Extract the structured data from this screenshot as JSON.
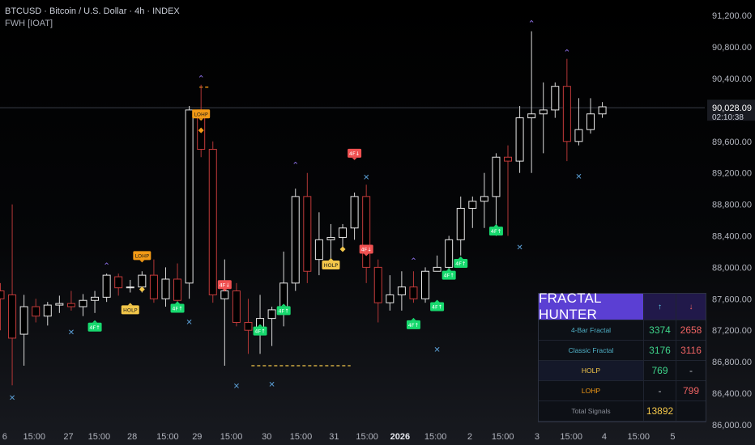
{
  "header": {
    "symbol_line": "BTCUSD · Bitcoin / U.S. Dollar · 4h · INDEX",
    "indicator_line": "FWH [IOAT]"
  },
  "colors": {
    "bull_body": "#000000",
    "bull_border": "#e8e8e8",
    "bear_body": "#000000",
    "bear_border": "#c43b3b",
    "bull_wick": "#d8d8d8",
    "bear_wick": "#b33737",
    "top_fractal": "#8c6fe6",
    "bottom_fractal": "#5b9fd6",
    "ff_green": "#17d96e",
    "ff_red": "#f05151",
    "holp": "#f3c74a",
    "lohp": "#f39a16",
    "price_label_bg": "#191b22"
  },
  "chart_data": {
    "type": "candlestick",
    "y_range": [
      85900,
      91400
    ],
    "y_ticks": [
      "91,200.00",
      "90,800.00",
      "90,400.00",
      "90,000.00",
      "89,600.00",
      "89,200.00",
      "88,800.00",
      "88,400.00",
      "88,000.00",
      "87,600.00",
      "87,200.00",
      "86,800.00",
      "86,400.00",
      "86,000.00"
    ],
    "y_tick_values": [
      91200,
      90800,
      90400,
      90000,
      89600,
      89200,
      88800,
      88400,
      88000,
      87600,
      87200,
      86800,
      86400,
      86000
    ],
    "x_ticks": [
      "6",
      "15:00",
      "27",
      "15:00",
      "28",
      "15:00",
      "29",
      "15:00",
      "30",
      "15:00",
      "31",
      "15:00",
      "2026",
      "15:00",
      "2",
      "15:00",
      "3",
      "15:00",
      "4",
      "15:00",
      "5"
    ],
    "x_tick_bold": [
      false,
      false,
      false,
      false,
      false,
      false,
      false,
      false,
      false,
      false,
      false,
      false,
      true,
      false,
      false,
      false,
      false,
      false,
      false,
      false,
      false
    ],
    "x_tick_slots": [
      0.4,
      2.9,
      5.8,
      8.4,
      11.2,
      14.2,
      16.7,
      19.6,
      22.6,
      25.5,
      28.3,
      31.1,
      33.9,
      36.9,
      39.8,
      42.6,
      45.5,
      48.4,
      51.2,
      54.1,
      57.0
    ],
    "candles": [
      {
        "o": 87700,
        "h": 87800,
        "l": 87200,
        "c": 87600
      },
      {
        "o": 87650,
        "h": 88800,
        "l": 86500,
        "c": 87100
      },
      {
        "o": 87150,
        "h": 87650,
        "l": 86750,
        "c": 87500
      },
      {
        "o": 87500,
        "h": 87600,
        "l": 87300,
        "c": 87380
      },
      {
        "o": 87380,
        "h": 87560,
        "l": 87260,
        "c": 87520
      },
      {
        "o": 87520,
        "h": 87640,
        "l": 87420,
        "c": 87540
      },
      {
        "o": 87540,
        "h": 87700,
        "l": 87450,
        "c": 87500
      },
      {
        "o": 87500,
        "h": 87660,
        "l": 87380,
        "c": 87580
      },
      {
        "o": 87580,
        "h": 87700,
        "l": 87420,
        "c": 87620
      },
      {
        "o": 87620,
        "h": 87920,
        "l": 87560,
        "c": 87900
      },
      {
        "o": 87880,
        "h": 87920,
        "l": 87640,
        "c": 87740
      },
      {
        "o": 87740,
        "h": 87840,
        "l": 87680,
        "c": 87750
      },
      {
        "o": 87750,
        "h": 87950,
        "l": 87680,
        "c": 87900
      },
      {
        "o": 87900,
        "h": 88100,
        "l": 87550,
        "c": 87600
      },
      {
        "o": 87600,
        "h": 88000,
        "l": 87500,
        "c": 87850
      },
      {
        "o": 87850,
        "h": 88050,
        "l": 87540,
        "c": 87580
      },
      {
        "o": 87800,
        "h": 90050,
        "l": 87600,
        "c": 90000
      },
      {
        "o": 90000,
        "h": 90320,
        "l": 89400,
        "c": 89500
      },
      {
        "o": 89500,
        "h": 89600,
        "l": 87550,
        "c": 87650
      },
      {
        "o": 87600,
        "h": 88100,
        "l": 86750,
        "c": 87700
      },
      {
        "o": 87700,
        "h": 87800,
        "l": 87250,
        "c": 87300
      },
      {
        "o": 87300,
        "h": 87600,
        "l": 86900,
        "c": 87200
      },
      {
        "o": 87200,
        "h": 87650,
        "l": 86900,
        "c": 87350
      },
      {
        "o": 87350,
        "h": 87500,
        "l": 87000,
        "c": 87460
      },
      {
        "o": 87460,
        "h": 88200,
        "l": 87250,
        "c": 87800
      },
      {
        "o": 87800,
        "h": 89000,
        "l": 87700,
        "c": 88900
      },
      {
        "o": 88900,
        "h": 89200,
        "l": 87800,
        "c": 87950
      },
      {
        "o": 88100,
        "h": 88700,
        "l": 87900,
        "c": 88350
      },
      {
        "o": 88350,
        "h": 88550,
        "l": 88000,
        "c": 88380
      },
      {
        "o": 88380,
        "h": 88550,
        "l": 88250,
        "c": 88500
      },
      {
        "o": 88500,
        "h": 88950,
        "l": 88350,
        "c": 88900
      },
      {
        "o": 88900,
        "h": 89050,
        "l": 87800,
        "c": 88000
      },
      {
        "o": 88000,
        "h": 88100,
        "l": 87300,
        "c": 87550
      },
      {
        "o": 87550,
        "h": 87900,
        "l": 87450,
        "c": 87650
      },
      {
        "o": 87650,
        "h": 87950,
        "l": 87450,
        "c": 87750
      },
      {
        "o": 87750,
        "h": 87950,
        "l": 87550,
        "c": 87600
      },
      {
        "o": 87600,
        "h": 88000,
        "l": 87550,
        "c": 87950
      },
      {
        "o": 87950,
        "h": 88150,
        "l": 87950,
        "c": 88000
      },
      {
        "o": 88000,
        "h": 88400,
        "l": 87900,
        "c": 88350
      },
      {
        "o": 88350,
        "h": 88900,
        "l": 88150,
        "c": 88750
      },
      {
        "o": 88750,
        "h": 88900,
        "l": 88500,
        "c": 88840
      },
      {
        "o": 88840,
        "h": 89200,
        "l": 88500,
        "c": 88900
      },
      {
        "o": 88900,
        "h": 89450,
        "l": 88400,
        "c": 89400
      },
      {
        "o": 89400,
        "h": 89550,
        "l": 88400,
        "c": 89350
      },
      {
        "o": 89350,
        "h": 90050,
        "l": 89200,
        "c": 89900
      },
      {
        "o": 89900,
        "h": 91000,
        "l": 89200,
        "c": 89950
      },
      {
        "o": 89950,
        "h": 90350,
        "l": 89450,
        "c": 90000
      },
      {
        "o": 90000,
        "h": 90350,
        "l": 89900,
        "c": 90300
      },
      {
        "o": 90300,
        "h": 90650,
        "l": 89350,
        "c": 89600
      },
      {
        "o": 89600,
        "h": 90150,
        "l": 89550,
        "c": 89750
      },
      {
        "o": 89750,
        "h": 90150,
        "l": 89700,
        "c": 89950
      },
      {
        "o": 89950,
        "h": 90100,
        "l": 89900,
        "c": 90040
      }
    ],
    "top_fractals": [
      {
        "i": 9,
        "p": 88020
      },
      {
        "i": 17,
        "p": 90400
      },
      {
        "i": 25,
        "p": 89300
      },
      {
        "i": 35,
        "p": 88080
      },
      {
        "i": 45,
        "p": 91100
      },
      {
        "i": 48,
        "p": 90730
      }
    ],
    "bottom_fractals": [
      {
        "i": 1,
        "p": 86350
      },
      {
        "i": 6,
        "p": 87180
      },
      {
        "i": 16,
        "p": 87310
      },
      {
        "i": 20,
        "p": 86500
      },
      {
        "i": 23,
        "p": 86520
      },
      {
        "i": 31,
        "p": 89150
      },
      {
        "i": 37,
        "p": 86960
      },
      {
        "i": 44,
        "p": 88260
      },
      {
        "i": 49,
        "p": 89160
      }
    ],
    "badges": [
      {
        "i": 8,
        "p": 87240,
        "text": "4F↑",
        "kind": "ff_green"
      },
      {
        "i": 15,
        "p": 87480,
        "text": "4F↑",
        "kind": "ff_green"
      },
      {
        "i": 24,
        "p": 87450,
        "text": "4F↑",
        "kind": "ff_green"
      },
      {
        "i": 22,
        "p": 87190,
        "text": "4F↑",
        "kind": "ff_green"
      },
      {
        "i": 35,
        "p": 87270,
        "text": "4F↑",
        "kind": "ff_green"
      },
      {
        "i": 37,
        "p": 87500,
        "text": "4F↑",
        "kind": "ff_green"
      },
      {
        "i": 38,
        "p": 87900,
        "text": "4F↑",
        "kind": "ff_green"
      },
      {
        "i": 39,
        "p": 88050,
        "text": "4F↑",
        "kind": "ff_green"
      },
      {
        "i": 42,
        "p": 88460,
        "text": "4F↑",
        "kind": "ff_green"
      },
      {
        "i": 19,
        "p": 87780,
        "text": "4F↓",
        "kind": "ff_red"
      },
      {
        "i": 30,
        "p": 89450,
        "text": "4F↓",
        "kind": "ff_red"
      },
      {
        "i": 31,
        "p": 88230,
        "text": "4F↓",
        "kind": "ff_red"
      },
      {
        "i": 12,
        "p": 88150,
        "text": "LOHP",
        "kind": "lohp"
      },
      {
        "i": 17,
        "p": 89950,
        "text": "LOHP",
        "kind": "lohp"
      },
      {
        "i": 11,
        "p": 87460,
        "text": "HOLP",
        "kind": "holp"
      },
      {
        "i": 28,
        "p": 88030,
        "text": "HOLP",
        "kind": "holp"
      }
    ],
    "diamonds": [
      {
        "i": 12,
        "p": 87720,
        "kind": "holp"
      },
      {
        "i": 17,
        "p": 89740,
        "kind": "lohp"
      },
      {
        "i": 29,
        "p": 88230,
        "kind": "holp"
      }
    ],
    "dashed_lines": [
      {
        "i0": 16.9,
        "i1": 17.7,
        "p": 90290,
        "kind": "lohp"
      },
      {
        "i0": 21.3,
        "i1": 29.7,
        "p": 86750,
        "kind": "holp"
      }
    ],
    "last_price": {
      "value": "90,028.09",
      "p": 90028.09,
      "countdown": "02:10:38"
    }
  },
  "panel": {
    "title": "FRACTAL HUNTER",
    "up_arrow": "↑",
    "down_arrow": "↓",
    "rows": [
      {
        "label": "4-Bar Fractal",
        "up": "3374",
        "down": "2658",
        "label_color": "#4fb0c6",
        "up_color": "#3ed48a",
        "down_color": "#f06363",
        "selected": false
      },
      {
        "label": "Classic Fractal",
        "up": "3176",
        "down": "3116",
        "label_color": "#4fb0c6",
        "up_color": "#3ed48a",
        "down_color": "#f06363",
        "selected": false
      },
      {
        "label": "HOLP",
        "up": "769",
        "down": "-",
        "label_color": "#f3c74a",
        "up_color": "#3ed48a",
        "down_color": "#b9bcc4",
        "selected": true
      },
      {
        "label": "LOHP",
        "up": "-",
        "down": "799",
        "label_color": "#f39a16",
        "up_color": "#b9bcc4",
        "down_color": "#f06363",
        "selected": false
      },
      {
        "label": "Total Signals",
        "up": "13892",
        "down": "",
        "label_color": "#8b8f99",
        "up_color": "#f3c74a",
        "down_color": "#b9bcc4",
        "selected": false
      }
    ]
  }
}
